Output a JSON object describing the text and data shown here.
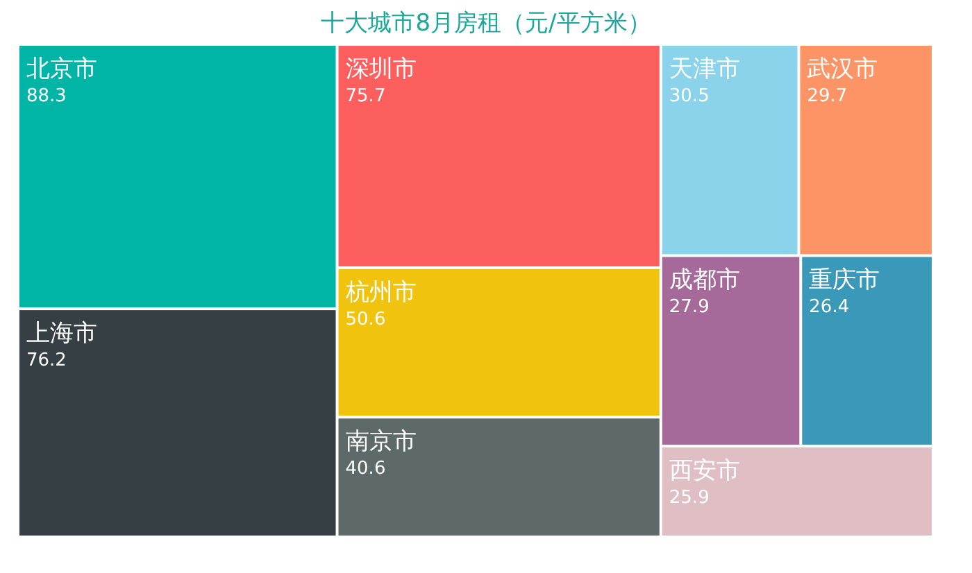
{
  "chart_data": {
    "type": "other",
    "title": "十大城市8月房租（元/平方米）",
    "categories": [
      "北京市",
      "上海市",
      "深圳市",
      "杭州市",
      "南京市",
      "天津市",
      "武汉市",
      "成都市",
      "重庆市",
      "西安市"
    ],
    "values": [
      88.3,
      76.2,
      75.7,
      50.6,
      40.6,
      30.5,
      29.7,
      27.9,
      26.4,
      25.9
    ],
    "colors": [
      "#00b5a6",
      "#353f44",
      "#fd5f5e",
      "#f0c30f",
      "#5e696a",
      "#8bd3eb",
      "#fd9466",
      "#a56a9a",
      "#3a98b8",
      "#e0bfc4"
    ],
    "data_labels": true
  }
}
